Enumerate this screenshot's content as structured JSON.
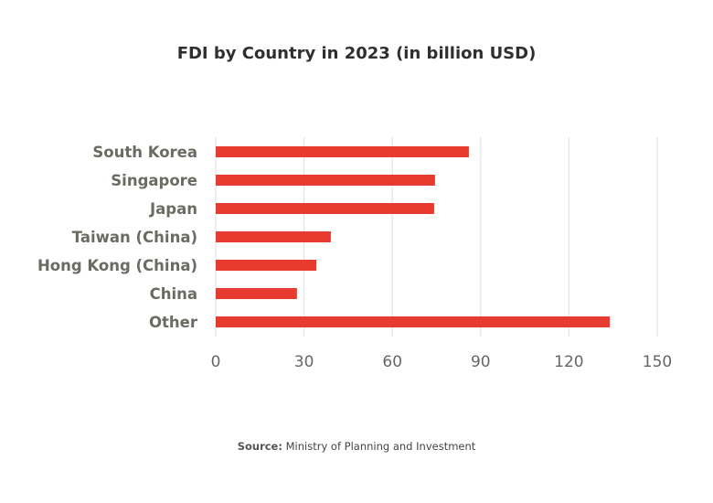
{
  "chart_data": {
    "type": "bar",
    "orientation": "horizontal",
    "title": "FDI by Country in 2023 (in billion USD)",
    "categories": [
      "South Korea",
      "Singapore",
      "Japan",
      "Taiwan (China)",
      "Hong Kong (China)",
      "China",
      "Other"
    ],
    "values": [
      86,
      74.5,
      74.2,
      39.1,
      34.2,
      27.6,
      133.9
    ],
    "xlabel": "",
    "ylabel": "",
    "xlim": [
      0,
      150
    ],
    "xticks": [
      0,
      30,
      60,
      90,
      120,
      150
    ],
    "grid": true,
    "bar_color": "#e63b2e",
    "grid_color": "#e3e3e3",
    "label_color": "#6b6b63",
    "tick_color": "#666666"
  },
  "source": {
    "label": "Source:",
    "text": "Ministry of Planning and Investment"
  }
}
